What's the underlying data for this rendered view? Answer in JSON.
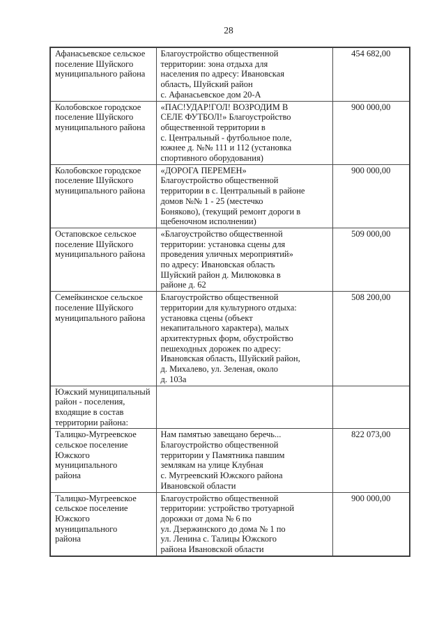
{
  "page": {
    "number": "28"
  },
  "colors": {
    "background": "#ffffff",
    "text": "#1a1a1a",
    "table_border": "#4a4a4a"
  },
  "table": {
    "rows": [
      {
        "municipality": "Афанасьевское сельское\nпоселение Шуйского\nмуниципального района",
        "description": "Благоустройство общественной\nтерритории: зона отдыха для\nнаселения по адресу: Ивановская\nобласть, Шуйский район\nс. Афанасьевское дом 20-А",
        "amount": "454 682,00"
      },
      {
        "municipality": "Колобовское городское\nпоселение Шуйского\nмуниципального района",
        "description": "«ПАС!УДАР!ГОЛ! ВОЗРОДИМ В\nСЕЛЕ ФУТБОЛ!» Благоустройство\nобщественной территории в\nс. Центральный - футбольное поле,\nюжнее д. №№ 111 и 112 (установка\nспортивного оборудования)",
        "amount": "900 000,00"
      },
      {
        "municipality": "Колобовское городское\nпоселение Шуйского\nмуниципального района",
        "description": "«ДОРОГА ПЕРЕМЕН»\nБлагоустройство общественной\nтерритории в с. Центральный в районе\nдомов №№ 1 - 25 (местечко\nБоняково), (текущий ремонт дороги в\nщебеночном исполнении)",
        "amount": "900 000,00"
      },
      {
        "municipality": "Остаповское сельское\nпоселение Шуйского\nмуниципального района",
        "description": "«Благоустройство общественной\nтерритории: установка сцены для\nпроведения уличных мероприятий»\nпо адресу: Ивановская область\nШуйский район д. Милюковка в\nрайоне д. 62",
        "amount": "509 000,00"
      },
      {
        "municipality": "Семейкинское сельское\nпоселение Шуйского\nмуниципального района",
        "description": "Благоустройство общественной\nтерритории для культурного отдыха:\nустановка сцены (объект\nнекапитального характера), малых\nархитектурных форм, обустройство\nпешеходных дорожек по адресу:\nИвановская область, Шуйский район,\nд. Михалево, ул. Зеленая, около\nд. 103а",
        "amount": "508 200,00"
      },
      {
        "municipality": "Южский муниципальный\nрайон - поселения,\nвходящие в состав\nтерритории района:",
        "description": "",
        "amount": ""
      },
      {
        "municipality": "Талицко-Мугреевское\nсельское поселение\nЮжского муниципального\nрайона",
        "description": "Нам памятью завещано беречь...\nБлагоустройство общественной\nтерритории у Памятника павшим\nземлякам на улице Клубная\nс. Мугреевский Южского района\nИвановской области",
        "amount": "822 073,00"
      },
      {
        "municipality": "Талицко-Мугреевское\nсельское поселение\nЮжского муниципального\nрайона",
        "description": "Благоустройство общественной\nтерритории: устройство тротуарной\nдорожки от дома № 6 по\nул. Дзержинского до дома № 1 по\nул. Ленина с. Талицы Южского\nрайона Ивановской области",
        "amount": "900 000,00"
      }
    ]
  }
}
